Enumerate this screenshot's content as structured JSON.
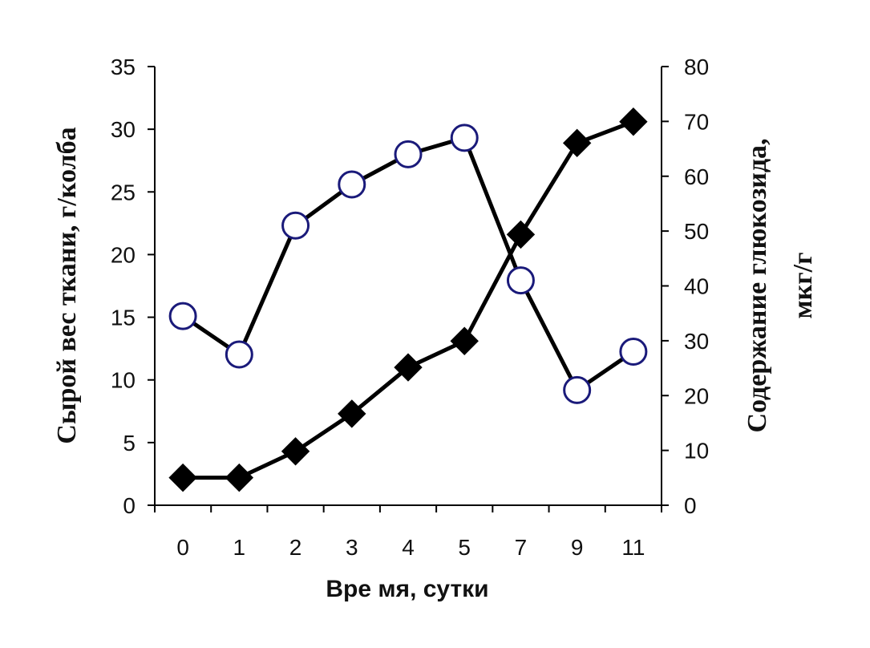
{
  "chart_data": {
    "type": "line",
    "categories": [
      "0",
      "1",
      "2",
      "3",
      "4",
      "5",
      "7",
      "9",
      "11"
    ],
    "xlabel": "Вре мя, сутки",
    "ylabel_left": "Сырой вес ткани, г/колба",
    "ylabel_right_line1": "Содержание глюкозида,",
    "ylabel_right_line2": "мкг/г",
    "ylim_left": [
      0,
      35
    ],
    "yticks_left": [
      0,
      5,
      10,
      15,
      20,
      25,
      30,
      35
    ],
    "ylim_right": [
      0,
      80
    ],
    "yticks_right": [
      0,
      10,
      20,
      30,
      40,
      50,
      60,
      70,
      80
    ],
    "grid": false,
    "series": [
      {
        "axis": "left",
        "marker": "diamond",
        "marker_fill": "#000000",
        "values": [
          2.2,
          2.2,
          4.3,
          7.3,
          11.0,
          13.1,
          21.6,
          28.9,
          30.6
        ]
      },
      {
        "axis": "right",
        "marker": "circle",
        "marker_fill": "#ffffff",
        "marker_stroke": "#1a1a7a",
        "values": [
          34.5,
          27.5,
          51.0,
          58.5,
          64.0,
          67.0,
          41.0,
          21.0,
          28.0
        ]
      }
    ]
  }
}
